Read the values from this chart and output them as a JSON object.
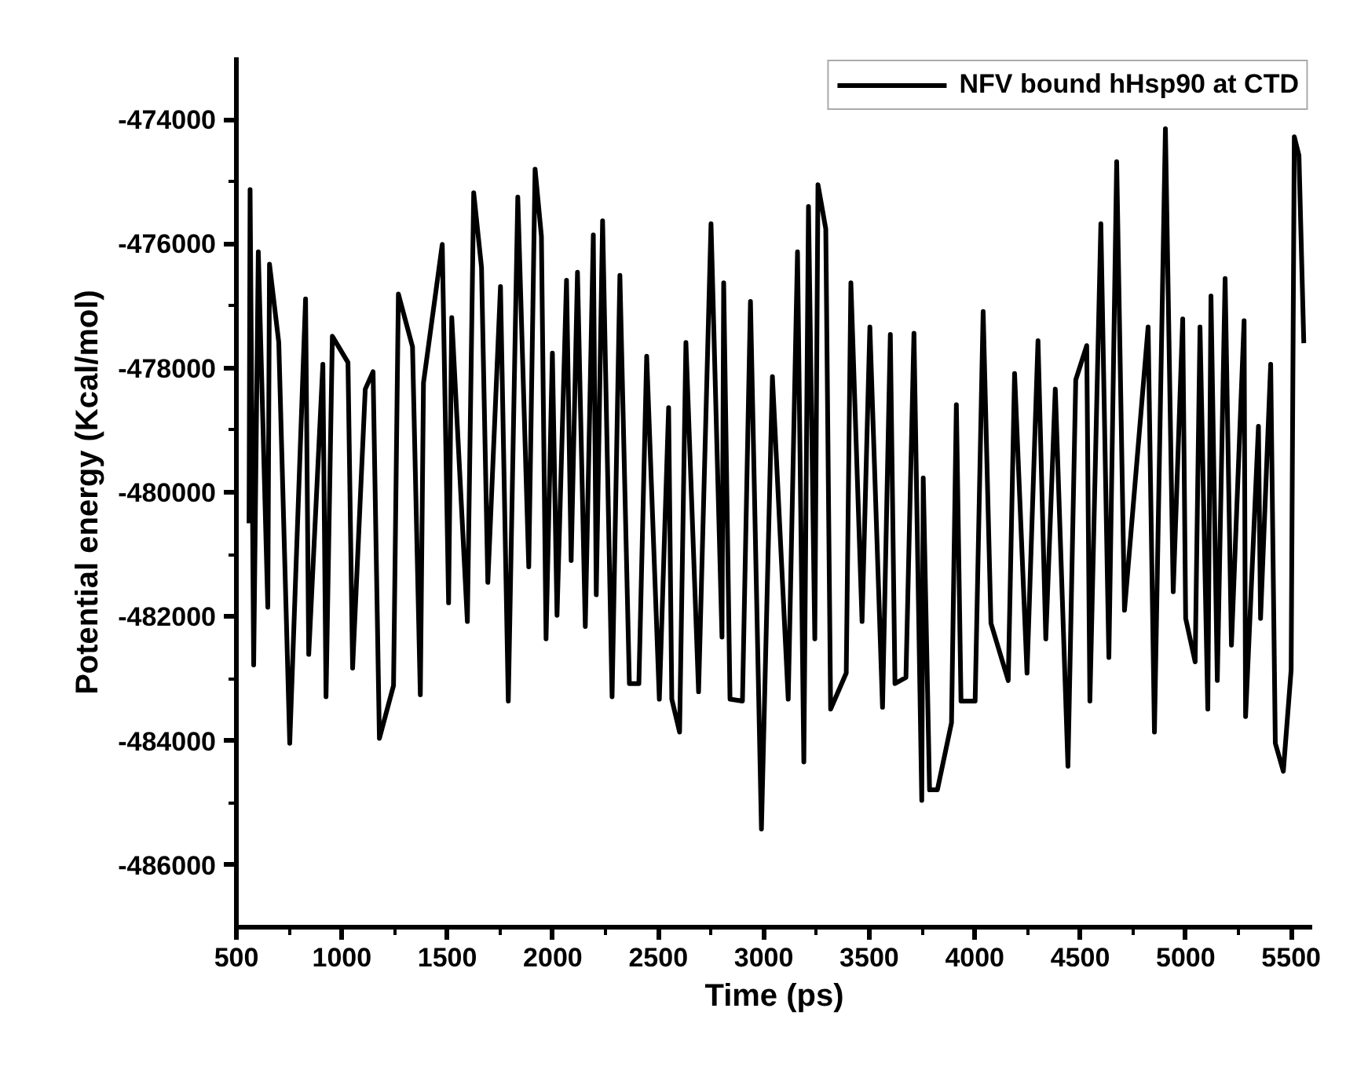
{
  "chart_data": {
    "type": "line",
    "xlabel": "Time (ps)",
    "ylabel": "Potential energy (Kcal/mol)",
    "xlim": [
      500,
      5600
    ],
    "xticks": [
      500,
      1000,
      1500,
      2000,
      2500,
      3000,
      3500,
      4000,
      4500,
      5000,
      5500
    ],
    "ylim": [
      -487000,
      -473000
    ],
    "yticks": [
      -486000,
      -484000,
      -482000,
      -480000,
      -478000,
      -476000,
      -474000
    ],
    "grid": false,
    "legend": "top right",
    "marker": "none",
    "line_style": "solid",
    "series": [
      {
        "name": "NFV bound hHsp90 at CTD",
        "color": "#000000",
        "x": [
          560,
          565,
          582,
          604,
          649,
          657,
          701,
          753,
          828,
          843,
          910,
          925,
          955,
          1029,
          1051,
          1111,
          1148,
          1178,
          1245,
          1268,
          1335,
          1372,
          1387,
          1476,
          1506,
          1521,
          1595,
          1625,
          1662,
          1692,
          1752,
          1789,
          1834,
          1886,
          1916,
          1946,
          1968,
          1998,
          2020,
          2065,
          2087,
          2117,
          2154,
          2192,
          2206,
          2236,
          2281,
          2318,
          2363,
          2408,
          2445,
          2505,
          2549,
          2564,
          2601,
          2631,
          2691,
          2750,
          2802,
          2810,
          2840,
          2899,
          2937,
          2989,
          3041,
          3116,
          3160,
          3190,
          3212,
          3242,
          3257,
          3294,
          3317,
          3391,
          3413,
          3466,
          3503,
          3563,
          3600,
          3622,
          3674,
          3712,
          3749,
          3756,
          3786,
          3823,
          3890,
          3913,
          3935,
          4002,
          4040,
          4077,
          4159,
          4189,
          4248,
          4300,
          4337,
          4382,
          4442,
          4479,
          4531,
          4546,
          4598,
          4636,
          4673,
          4710,
          4822,
          4852,
          4904,
          4941,
          4986,
          5000,
          5045,
          5068,
          5105,
          5120,
          5150,
          5187,
          5217,
          5277,
          5284,
          5345,
          5355,
          5403,
          5425,
          5463,
          5500,
          5515,
          5537,
          5560
        ],
        "values": [
          -480500,
          -475130,
          -482780,
          -476130,
          -481850,
          -476330,
          -477590,
          -484040,
          -476890,
          -482610,
          -477940,
          -483290,
          -477490,
          -477910,
          -482830,
          -478340,
          -478060,
          -483960,
          -483110,
          -476810,
          -477660,
          -483260,
          -478240,
          -476010,
          -481780,
          -477190,
          -482080,
          -475180,
          -476380,
          -481450,
          -476690,
          -483360,
          -475250,
          -481200,
          -474800,
          -475880,
          -482360,
          -477760,
          -481980,
          -476590,
          -481100,
          -476460,
          -482160,
          -475860,
          -481650,
          -475630,
          -483290,
          -476510,
          -483080,
          -483080,
          -477810,
          -483330,
          -478640,
          -483330,
          -483860,
          -477590,
          -483210,
          -475680,
          -482330,
          -476630,
          -483330,
          -483360,
          -476930,
          -485420,
          -478140,
          -483330,
          -476130,
          -484340,
          -475400,
          -482360,
          -475050,
          -475760,
          -483490,
          -482910,
          -476630,
          -482080,
          -477340,
          -483460,
          -477460,
          -483080,
          -482980,
          -477440,
          -484960,
          -479770,
          -484790,
          -484790,
          -483710,
          -478590,
          -483360,
          -483360,
          -477090,
          -482110,
          -483030,
          -478090,
          -482910,
          -477560,
          -482360,
          -478340,
          -484410,
          -478190,
          -477640,
          -483360,
          -475680,
          -482660,
          -474680,
          -481900,
          -477340,
          -483860,
          -474150,
          -481600,
          -477210,
          -482030,
          -482730,
          -477340,
          -483490,
          -476840,
          -483030,
          -476560,
          -482460,
          -477240,
          -483610,
          -478940,
          -482030,
          -477940,
          -484040,
          -484490,
          -482860,
          -474280,
          -474580,
          -477600
        ]
      }
    ]
  }
}
